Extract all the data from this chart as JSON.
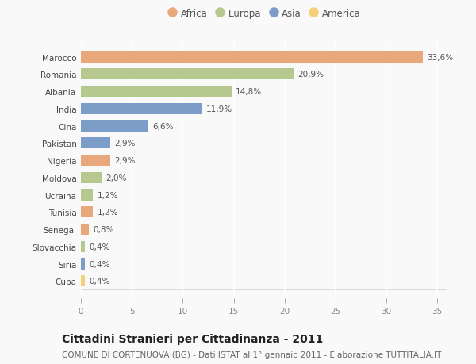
{
  "categories": [
    "Marocco",
    "Romania",
    "Albania",
    "India",
    "Cina",
    "Pakistan",
    "Nigeria",
    "Moldova",
    "Ucraina",
    "Tunisia",
    "Senegal",
    "Slovacchia",
    "Siria",
    "Cuba"
  ],
  "values": [
    33.6,
    20.9,
    14.8,
    11.9,
    6.6,
    2.9,
    2.9,
    2.0,
    1.2,
    1.2,
    0.8,
    0.4,
    0.4,
    0.4
  ],
  "labels": [
    "33,6%",
    "20,9%",
    "14,8%",
    "11,9%",
    "6,6%",
    "2,9%",
    "2,9%",
    "2,0%",
    "1,2%",
    "1,2%",
    "0,8%",
    "0,4%",
    "0,4%",
    "0,4%"
  ],
  "continents": [
    "Africa",
    "Europa",
    "Europa",
    "Asia",
    "Asia",
    "Asia",
    "Africa",
    "Europa",
    "Europa",
    "Africa",
    "Africa",
    "Europa",
    "Asia",
    "America"
  ],
  "colors": {
    "Africa": "#E8A87C",
    "Europa": "#B5C98E",
    "Asia": "#7B9DC7",
    "America": "#F5D07A"
  },
  "legend_order": [
    "Africa",
    "Europa",
    "Asia",
    "America"
  ],
  "title": "Cittadini Stranieri per Cittadinanza - 2011",
  "subtitle": "COMUNE DI CORTENUOVA (BG) - Dati ISTAT al 1° gennaio 2011 - Elaborazione TUTTITALIA.IT",
  "xlim": [
    0,
    36
  ],
  "xticks": [
    0,
    5,
    10,
    15,
    20,
    25,
    30,
    35
  ],
  "bg_color": "#f9f9f9",
  "grid_color": "#ffffff",
  "bar_height": 0.65,
  "title_fontsize": 10,
  "subtitle_fontsize": 7.5,
  "label_fontsize": 7.5,
  "tick_fontsize": 7.5,
  "legend_fontsize": 8.5
}
